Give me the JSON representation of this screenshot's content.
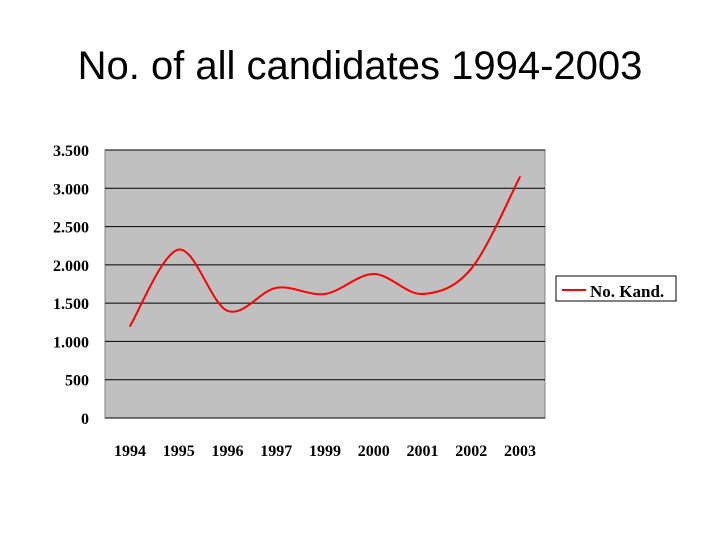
{
  "title": "No. of all candidates 1994-2003",
  "chart_data": {
    "type": "line",
    "title": "No. of all candidates 1994-2003",
    "xlabel": "",
    "ylabel": "",
    "categories": [
      "1994",
      "1995",
      "1996",
      "1997",
      "1999",
      "2000",
      "2001",
      "2002",
      "2003"
    ],
    "series": [
      {
        "name": "No. Kand.",
        "color": "#ff0000",
        "values": [
          1200,
          2200,
          1400,
          1700,
          1620,
          1880,
          1620,
          1950,
          3150
        ]
      }
    ],
    "ylim": [
      0,
      3500
    ],
    "yticks": [
      0,
      500,
      1000,
      1500,
      2000,
      2500,
      3000,
      3500
    ],
    "ytick_labels": [
      "0",
      "500",
      "1.000",
      "1.500",
      "2.000",
      "2.500",
      "3.000",
      "3.500"
    ],
    "plot_background": "#c0c0c0",
    "grid": "horizontal",
    "legend_position": "right",
    "smooth": true
  }
}
